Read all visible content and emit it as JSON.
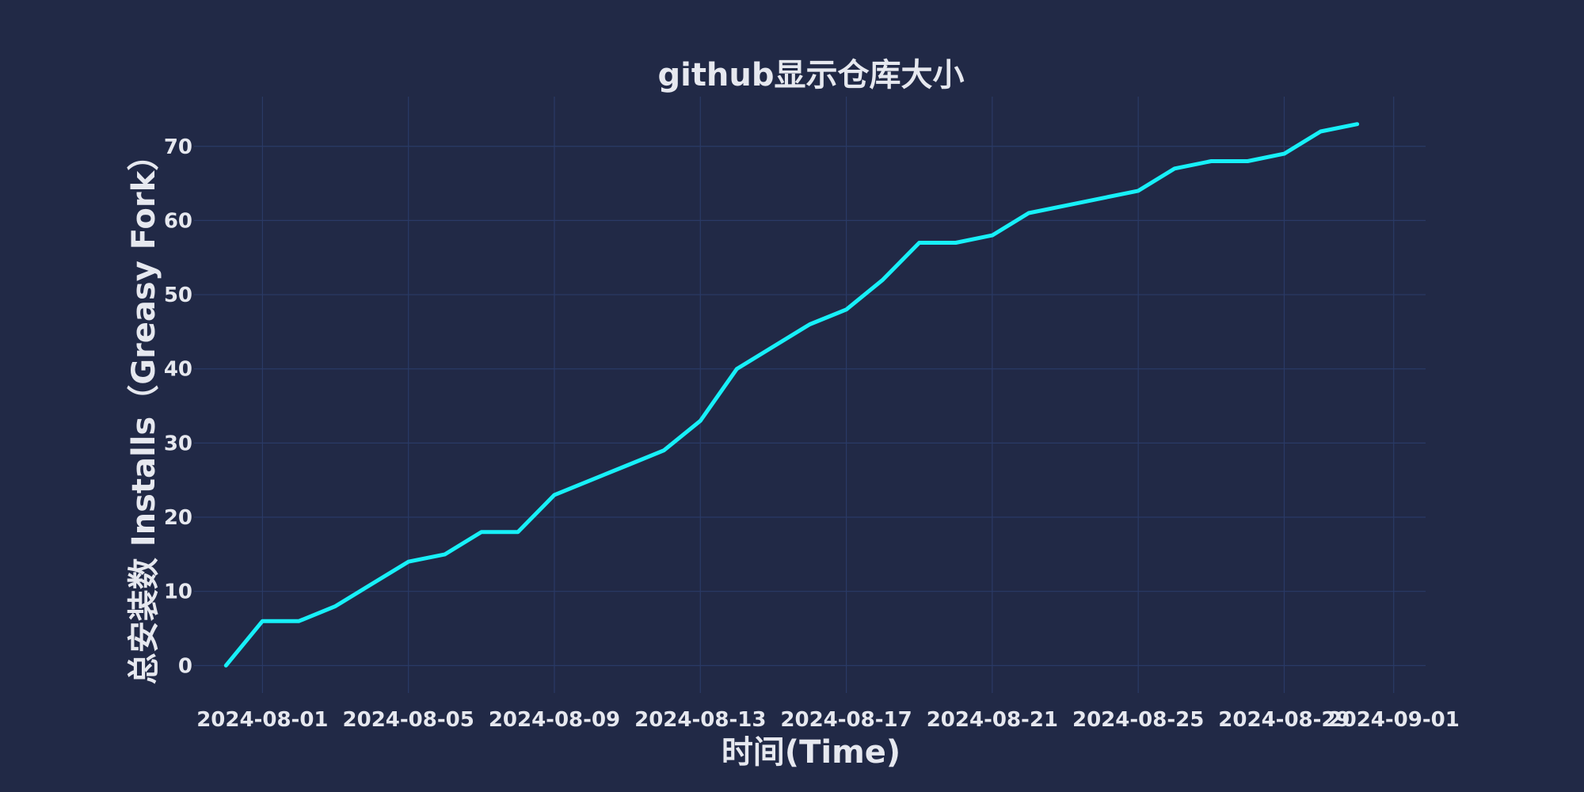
{
  "chart_data": {
    "type": "line",
    "title": "github显示仓库大小",
    "xlabel": "时间(Time)",
    "ylabel": "总安装数 Installs（Greasy Fork）",
    "x_tick_labels": [
      "2024-08-01",
      "2024-08-05",
      "2024-08-09",
      "2024-08-13",
      "2024-08-17",
      "2024-08-21",
      "2024-08-25",
      "2024-08-29",
      "2024-09-01"
    ],
    "y_ticks": [
      0,
      10,
      20,
      30,
      40,
      50,
      60,
      70
    ],
    "ylim": [
      -3.7,
      76.7
    ],
    "xlim": [
      "2024-07-30T03:00",
      "2024-09-01T21:00"
    ],
    "grid": true,
    "line_color": "#17f0f8",
    "series": [
      {
        "x": [
          "2024-07-31",
          "2024-08-01",
          "2024-08-02",
          "2024-08-03",
          "2024-08-04",
          "2024-08-05",
          "2024-08-06",
          "2024-08-07",
          "2024-08-08",
          "2024-08-09",
          "2024-08-10",
          "2024-08-11",
          "2024-08-12",
          "2024-08-13",
          "2024-08-14",
          "2024-08-15",
          "2024-08-16",
          "2024-08-17",
          "2024-08-18",
          "2024-08-19",
          "2024-08-20",
          "2024-08-21",
          "2024-08-22",
          "2024-08-23",
          "2024-08-24",
          "2024-08-25",
          "2024-08-26",
          "2024-08-27",
          "2024-08-28",
          "2024-08-29",
          "2024-08-30",
          "2024-08-31"
        ],
        "values": [
          0,
          6,
          6,
          8,
          11,
          14,
          15,
          18,
          18,
          23,
          25,
          27,
          29,
          33,
          40,
          43,
          46,
          48,
          52,
          57,
          57,
          58,
          61,
          62,
          63,
          64,
          67,
          68,
          68,
          69,
          72,
          73
        ]
      }
    ]
  }
}
